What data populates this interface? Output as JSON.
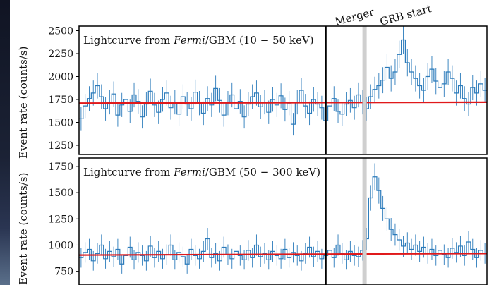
{
  "chart_data": [
    {
      "type": "line",
      "panel": "top",
      "annotation_prefix": "Lightcurve from ",
      "annotation_instrument": "Fermi",
      "annotation_suffix": "/GBM (10 − 50 keV)",
      "ylabel": "Event rate (counts/s)",
      "ylim": [
        1150,
        2550
      ],
      "yticks": [
        1250,
        1500,
        1750,
        2000,
        2250,
        2500
      ],
      "xlim": [
        0,
        100
      ],
      "merger_x": 60.5,
      "grb_start_x": 70,
      "baseline": [
        1710,
        1720
      ],
      "series": [
        {
          "values": [
            1540,
            1680,
            1760,
            1820,
            1900,
            1780,
            1650,
            1720,
            1810,
            1580,
            1690,
            1750,
            1620,
            1800,
            1730,
            1560,
            1700,
            1840,
            1690,
            1610,
            1750,
            1820,
            1660,
            1720,
            1590,
            1780,
            1700,
            1650,
            1830,
            1710,
            1600,
            1760,
            1690,
            1870,
            1740,
            1580,
            1710,
            1800,
            1650,
            1730,
            1560,
            1700,
            1780,
            1820,
            1670,
            1720,
            1610,
            1750,
            1690,
            1790,
            1640,
            1710,
            1480,
            1720,
            1850,
            1680,
            1600,
            1750,
            1700,
            1660,
            1520,
            1680,
            1760,
            1620,
            1590,
            1700,
            1740,
            1660,
            1800,
            1720,
            1650,
            1780,
            1860,
            1900,
            1960,
            2100,
            1980,
            2050,
            2240,
            2400,
            2150,
            2050,
            1980,
            1900,
            1850,
            2000,
            2080,
            1950,
            1880,
            1920,
            2050,
            1980,
            1820,
            1900,
            1760,
            1700,
            1880,
            1820,
            1920,
            1850
          ]
        }
      ],
      "labels": {
        "merger": "Merger",
        "grb": "GRB start"
      }
    },
    {
      "type": "line",
      "panel": "bottom",
      "annotation_prefix": "Lightcurve from ",
      "annotation_instrument": "Fermi",
      "annotation_suffix": "/GBM (50 − 300 keV)",
      "ylabel": "Event rate (counts/s)",
      "ylim": [
        620,
        1830
      ],
      "yticks": [
        750,
        1000,
        1250,
        1500,
        1750
      ],
      "xlim": [
        0,
        100
      ],
      "merger_x": 60.5,
      "grb_start_x": 70,
      "baseline": [
        905,
        920
      ],
      "series": [
        {
          "values": [
            880,
            930,
            960,
            850,
            920,
            1000,
            870,
            940,
            890,
            960,
            820,
            900,
            980,
            860,
            930,
            900,
            850,
            990,
            880,
            940,
            870,
            910,
            1000,
            860,
            930,
            890,
            820,
            960,
            900,
            870,
            940,
            1060,
            880,
            920,
            850,
            980,
            910,
            870,
            940,
            900,
            860,
            950,
            880,
            1000,
            890,
            920,
            860,
            940,
            900,
            870,
            960,
            880,
            930,
            900,
            850,
            920,
            980,
            890,
            940,
            870,
            900,
            950,
            880,
            1000,
            920,
            860,
            940,
            900,
            890,
            950,
            1060,
            1450,
            1650,
            1520,
            1350,
            1250,
            1150,
            1100,
            1050,
            990,
            1020,
            960,
            1000,
            940,
            980,
            920,
            960,
            900,
            950,
            910,
            880,
            970,
            930,
            990,
            900,
            1030,
            960,
            880,
            950,
            920
          ]
        }
      ]
    }
  ]
}
